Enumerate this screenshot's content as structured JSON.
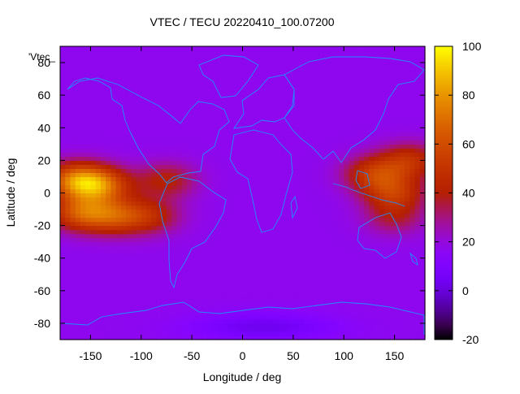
{
  "chart_data": {
    "type": "heatmap",
    "title": "VTEC / TECU 20220410_100.07200",
    "xlabel": "Longitude / deg",
    "ylabel": "Latitude / deg",
    "key_label": "'Vtec_",
    "xlim": [
      -180,
      180
    ],
    "ylim": [
      -90,
      90
    ],
    "zlim": [
      -20,
      100
    ],
    "x_ticks": [
      {
        "value": -150,
        "label": "-150"
      },
      {
        "value": -100,
        "label": "-100"
      },
      {
        "value": -50,
        "label": "-50"
      },
      {
        "value": 0,
        "label": "0"
      },
      {
        "value": 50,
        "label": "50"
      },
      {
        "value": 100,
        "label": "100"
      },
      {
        "value": 150,
        "label": "150"
      }
    ],
    "y_ticks": [
      {
        "value": 80,
        "label": "80"
      },
      {
        "value": 60,
        "label": "60"
      },
      {
        "value": 40,
        "label": "40"
      },
      {
        "value": 20,
        "label": "20"
      },
      {
        "value": 0,
        "label": "0"
      },
      {
        "value": -20,
        "label": "-20"
      },
      {
        "value": -40,
        "label": "-40"
      },
      {
        "value": -60,
        "label": "-60"
      },
      {
        "value": -80,
        "label": "-80"
      }
    ],
    "colorbar_ticks": [
      {
        "value": 100,
        "label": "100"
      },
      {
        "value": 80,
        "label": "80"
      },
      {
        "value": 60,
        "label": "60"
      },
      {
        "value": 40,
        "label": "40"
      },
      {
        "value": 20,
        "label": "20"
      },
      {
        "value": 0,
        "label": "0"
      },
      {
        "value": -20,
        "label": "-20"
      }
    ],
    "colormap": "gnuplot rgbformulae 7,5,15",
    "coastline_color": "#1e90ff",
    "grid": false,
    "features": [
      {
        "lon": -165,
        "lat": 8,
        "vtec": 95
      },
      {
        "lon": -140,
        "lat": 5,
        "vtec": 90
      },
      {
        "lon": -160,
        "lat": -12,
        "vtec": 85
      },
      {
        "lon": -125,
        "lat": -14,
        "vtec": 75
      },
      {
        "lon": -90,
        "lat": -14,
        "vtec": 55
      },
      {
        "lon": -75,
        "lat": 8,
        "vtec": 55
      },
      {
        "lon": 130,
        "lat": 12,
        "vtec": 70
      },
      {
        "lon": 150,
        "lat": 0,
        "vtec": 68
      },
      {
        "lon": 165,
        "lat": 20,
        "vtec": 65
      },
      {
        "lon": 150,
        "lat": -15,
        "vtec": 45
      }
    ],
    "background_vtec": 17,
    "polar_minimum": {
      "lon": 20,
      "lat": -82,
      "vtec": 0
    }
  }
}
